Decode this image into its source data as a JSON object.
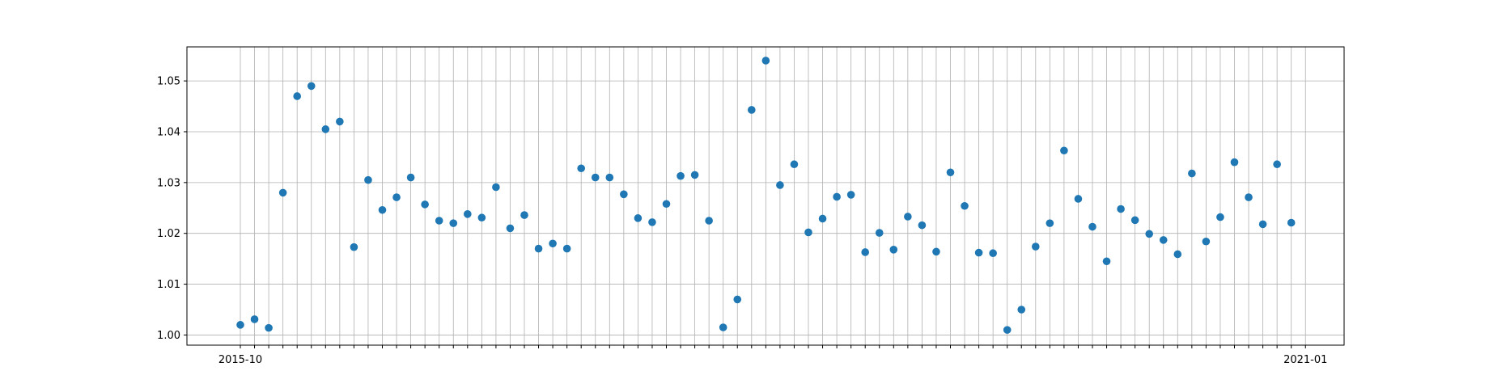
{
  "chart_data": {
    "type": "scatter",
    "title": "",
    "xlabel": "",
    "ylabel": "",
    "grid": true,
    "marker_color": "#1f77b4",
    "ylim": [
      0.998,
      1.0567
    ],
    "yticks": [
      "1.00",
      "1.01",
      "1.02",
      "1.03",
      "1.04",
      "1.05"
    ],
    "x_start_label": "2015-10",
    "x_end_label": "2021-01",
    "values": [
      1.002,
      1.0031,
      1.0014,
      1.028,
      1.047,
      1.049,
      1.0405,
      1.042,
      1.0173,
      1.0305,
      1.0246,
      1.0271,
      1.031,
      1.0257,
      1.0225,
      1.022,
      1.0238,
      1.0231,
      1.0291,
      1.021,
      1.0236,
      1.017,
      1.018,
      1.017,
      1.0328,
      1.031,
      1.031,
      1.0277,
      1.023,
      1.0222,
      1.0258,
      1.0313,
      1.0315,
      1.0225,
      1.0015,
      1.007,
      1.0443,
      1.054,
      1.0295,
      1.0336,
      1.0202,
      1.0229,
      1.0272,
      1.0276,
      1.0163,
      1.0201,
      1.0168,
      1.0233,
      1.0216,
      1.0164,
      1.032,
      1.0254,
      1.0162,
      1.0161,
      1.001,
      1.005,
      1.0174,
      1.022,
      1.0363,
      1.0268,
      1.0213,
      1.0145,
      1.0248,
      1.0226,
      1.0199,
      1.0187,
      1.0159,
      1.0318,
      1.0184,
      1.0232,
      1.034,
      1.0271,
      1.0218,
      1.0336,
      1.0221
    ]
  }
}
